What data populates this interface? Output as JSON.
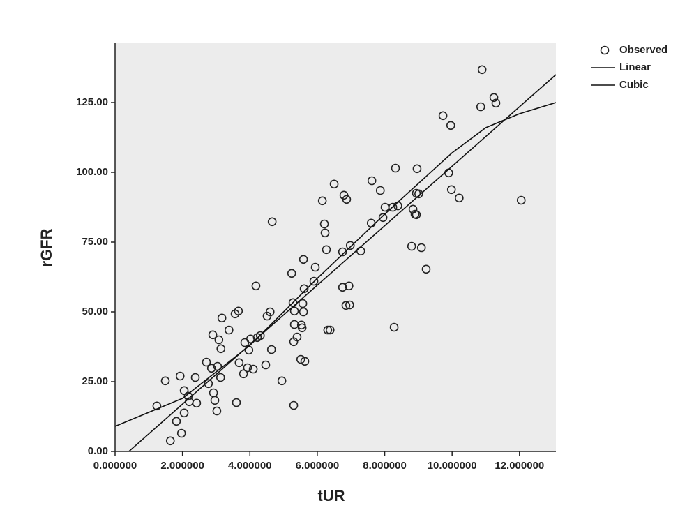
{
  "chart_data": {
    "type": "scatter",
    "xlabel": "tUR",
    "ylabel": "rGFR",
    "xlim": [
      0,
      13.08
    ],
    "ylim": [
      0,
      146.25
    ],
    "xticks": [
      {
        "value": 0,
        "label": "0.000000"
      },
      {
        "value": 2,
        "label": "2.000000"
      },
      {
        "value": 4,
        "label": "4.000000"
      },
      {
        "value": 6,
        "label": "6.000000"
      },
      {
        "value": 8,
        "label": "8.000000"
      },
      {
        "value": 10,
        "label": "10.000000"
      },
      {
        "value": 12,
        "label": "12.000000"
      }
    ],
    "yticks": [
      {
        "value": 0,
        "label": "0.00"
      },
      {
        "value": 25,
        "label": "25.00"
      },
      {
        "value": 50,
        "label": "50.00"
      },
      {
        "value": 75,
        "label": "75.00"
      },
      {
        "value": 100,
        "label": "100.00"
      },
      {
        "value": 125,
        "label": "125.00"
      }
    ],
    "plot_background": "#ececec",
    "series": [
      {
        "name": "Observed",
        "color": "#222222",
        "mode": "markers",
        "x": [
          1.24,
          1.49,
          1.64,
          1.82,
          1.93,
          1.97,
          2.05,
          2.05,
          2.17,
          2.2,
          2.38,
          2.42,
          2.71,
          2.77,
          2.86,
          2.9,
          2.92,
          2.96,
          3.02,
          3.04,
          3.08,
          3.13,
          3.14,
          3.17,
          3.38,
          3.56,
          3.6,
          3.66,
          3.68,
          3.81,
          3.85,
          3.93,
          3.97,
          4.02,
          4.1,
          4.18,
          4.22,
          4.31,
          4.47,
          4.51,
          4.6,
          4.64,
          4.66,
          4.95,
          5.24,
          5.28,
          5.3,
          5.3,
          5.32,
          5.32,
          5.4,
          5.51,
          5.53,
          5.55,
          5.57,
          5.59,
          5.59,
          5.61,
          5.63,
          5.9,
          5.94,
          6.15,
          6.21,
          6.23,
          6.27,
          6.31,
          6.38,
          6.5,
          6.75,
          6.75,
          6.79,
          6.85,
          6.87,
          6.94,
          6.96,
          6.98,
          7.29,
          7.6,
          7.62,
          7.87,
          7.95,
          8.01,
          8.24,
          8.28,
          8.32,
          8.39,
          8.8,
          8.84,
          8.9,
          8.94,
          8.96,
          8.94,
          9.09,
          9.23,
          9.73,
          9.9,
          9.96,
          9.98,
          10.21,
          10.85,
          10.89,
          11.24,
          11.3,
          12.05,
          9.01
        ],
        "values": [
          16.3,
          25.3,
          3.8,
          10.8,
          27,
          6.5,
          13.8,
          21.8,
          19.8,
          17.8,
          26.5,
          17.3,
          32,
          24.3,
          29.8,
          41.8,
          21,
          18.3,
          14.5,
          30.5,
          40,
          26.5,
          36.8,
          47.8,
          43.5,
          49.3,
          17.5,
          50.3,
          31.8,
          27.8,
          39,
          30,
          36.3,
          40.3,
          29.5,
          59.3,
          40.8,
          41.5,
          31,
          48.5,
          50,
          36.5,
          82.3,
          25.3,
          63.8,
          53.3,
          39.3,
          16.5,
          50.3,
          45.5,
          41,
          33,
          45.3,
          44.3,
          53,
          50,
          68.8,
          58.3,
          32.3,
          61,
          66,
          89.8,
          81.5,
          78.3,
          72.3,
          43.5,
          43.5,
          95.8,
          58.8,
          71.5,
          91.8,
          52.3,
          90.3,
          59.3,
          52.5,
          73.8,
          71.8,
          81.8,
          97,
          93.5,
          83.8,
          87.5,
          87.5,
          44.5,
          101.5,
          88,
          73.5,
          86.8,
          85,
          84.8,
          101.3,
          92.5,
          73,
          65.3,
          120.3,
          99.8,
          116.8,
          93.8,
          90.8,
          123.5,
          136.8,
          126.8,
          124.8,
          90,
          92.3
        ]
      },
      {
        "name": "Linear",
        "color": "#111111",
        "mode": "lines",
        "x": [
          0.41,
          13.08
        ],
        "values": [
          0,
          135
        ]
      },
      {
        "name": "Cubic",
        "color": "#111111",
        "mode": "lines",
        "x": [
          0,
          1,
          2,
          4,
          6,
          8,
          10,
          11,
          12,
          13.08
        ],
        "values": [
          9,
          14,
          19,
          38,
          62,
          85,
          107,
          116,
          121,
          125
        ]
      }
    ]
  }
}
